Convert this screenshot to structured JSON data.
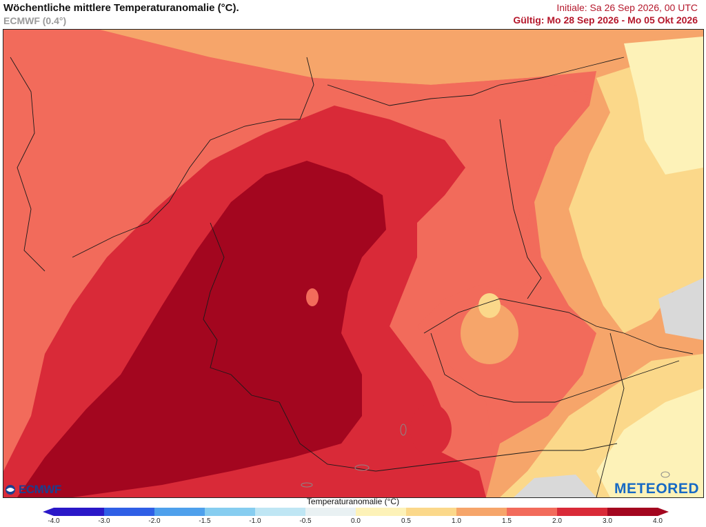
{
  "header": {
    "title": "Wöchentliche mittlere Temperaturanomalie (°C).",
    "model": "ECMWF (0.4°)",
    "initial": "Initiale: Sa 26 Sep 2026, 00 UTC",
    "valid": "Gültig: Mo 28 Sep 2026 - Mo 05 Okt 2026"
  },
  "logos": {
    "left": "ECMWF",
    "right": "METEORED"
  },
  "legend": {
    "title": "Temperaturanomalie (°C)",
    "ticks": [
      "-4.0",
      "-3.0",
      "-2.0",
      "-1.5",
      "-1.0",
      "-0.5",
      "0.0",
      "0.5",
      "1.0",
      "1.5",
      "2.0",
      "3.0",
      "4.0"
    ],
    "colors": [
      "#2a18c8",
      "#2f5fe6",
      "#4ea0ec",
      "#86cdf0",
      "#bfe6f4",
      "#e9f1f3",
      "#d9d9d9",
      "#fdf2b8",
      "#fbd88a",
      "#f6a56a",
      "#f26b5b",
      "#d92a38",
      "#a3061f"
    ]
  }
}
